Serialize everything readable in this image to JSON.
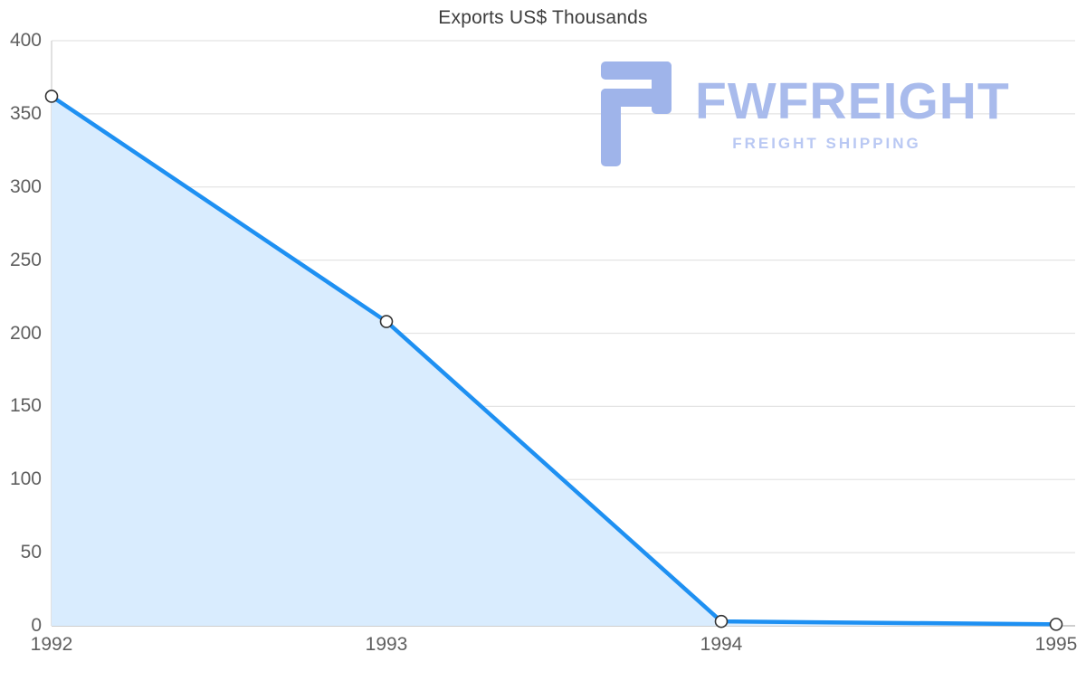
{
  "title": "Exports US$ Thousands",
  "watermark": {
    "brand": "FWFREIGHT",
    "tagline": "FREIGHT SHIPPING",
    "brand_color": "#a9bbec",
    "tagline_color": "#b9c8f3",
    "icon_color": "#9fb4ea"
  },
  "chart_data": {
    "type": "area",
    "title": "Exports US$ Thousands",
    "x": [
      1992,
      1993,
      1994,
      1995
    ],
    "xticks": [
      "1992",
      "1993",
      "1994",
      "1995"
    ],
    "series": [
      {
        "name": "Exports US$ Thousands",
        "values": [
          362,
          208,
          3,
          1
        ]
      }
    ],
    "xlabel": "",
    "ylabel": "",
    "ylim": [
      0,
      400
    ],
    "yticks": [
      0,
      50,
      100,
      150,
      200,
      250,
      300,
      350,
      400
    ],
    "grid": "horizontal",
    "legend": "none",
    "line_color": "#1e90f2",
    "fill_color": "#d9ecfe",
    "marker_fill": "#ffffff",
    "marker_stroke": "#333333",
    "gridline_color": "#e4e4e4",
    "axis_line_color": "#d4d4d4",
    "baseline_color": "#bdbdbd",
    "tick_label_color": "#5f5f5f"
  }
}
